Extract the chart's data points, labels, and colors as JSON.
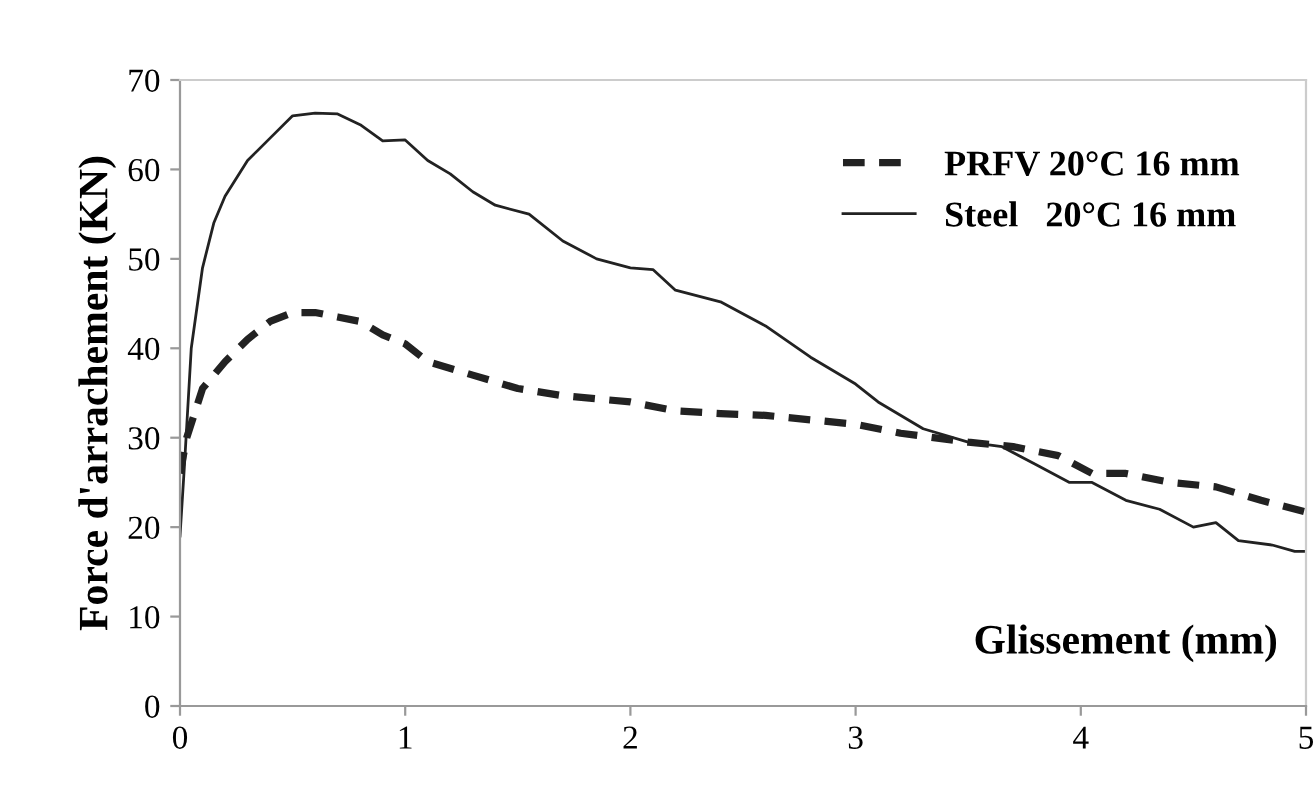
{
  "chart_data": {
    "type": "line",
    "ylabel": "Force d'arrachement (KN)",
    "xlabel": "Glissement (mm)",
    "xlim": [
      0,
      5
    ],
    "ylim": [
      0,
      70
    ],
    "xticks": [
      0,
      1,
      2,
      3,
      4,
      5
    ],
    "yticks": [
      0,
      10,
      20,
      30,
      40,
      50,
      60,
      70
    ],
    "grid": false,
    "legend": "top right",
    "series": [
      {
        "name": "PRFV 20°C 16 mm",
        "color": "#222222",
        "line_style": "dashed",
        "x": [
          0,
          0.03,
          0.1,
          0.2,
          0.3,
          0.4,
          0.5,
          0.6,
          0.7,
          0.8,
          0.9,
          1.0,
          1.1,
          1.3,
          1.5,
          1.7,
          2.0,
          2.2,
          2.4,
          2.6,
          3.0,
          3.2,
          3.5,
          3.7,
          3.9,
          4.05,
          4.2,
          4.4,
          4.6,
          4.8,
          5
        ],
        "values": [
          26,
          30,
          35.5,
          38.5,
          41,
          43,
          44,
          44,
          43.5,
          43,
          41.5,
          40.5,
          38.5,
          37,
          35.5,
          34.7,
          34,
          33,
          32.7,
          32.5,
          31.5,
          30.5,
          29.5,
          29,
          28,
          26,
          26,
          25,
          24.5,
          23,
          21.7
        ]
      },
      {
        "name": "Steel   20°C 16 mm",
        "color": "#222222",
        "line_style": "solid",
        "x": [
          0,
          0.02,
          0.05,
          0.1,
          0.15,
          0.2,
          0.3,
          0.4,
          0.5,
          0.6,
          0.7,
          0.8,
          0.9,
          1.0,
          1.1,
          1.2,
          1.3,
          1.4,
          1.55,
          1.7,
          1.85,
          2.0,
          2.1,
          2.2,
          2.4,
          2.6,
          2.8,
          3.0,
          3.1,
          3.3,
          3.5,
          3.65,
          3.8,
          3.95,
          4.05,
          4.2,
          4.35,
          4.5,
          4.6,
          4.7,
          4.85,
          4.95,
          5
        ],
        "values": [
          19,
          27,
          40,
          49,
          54,
          57,
          61,
          63.5,
          66,
          66.3,
          66.2,
          65,
          63.2,
          63.3,
          61,
          59.5,
          57.5,
          56,
          55,
          52,
          50,
          49,
          48.8,
          46.5,
          45.2,
          42.5,
          39,
          36,
          34,
          31,
          29.5,
          29,
          27,
          25,
          25,
          23,
          22,
          20,
          20.5,
          18.5,
          18,
          17.3,
          17.3
        ]
      }
    ]
  }
}
